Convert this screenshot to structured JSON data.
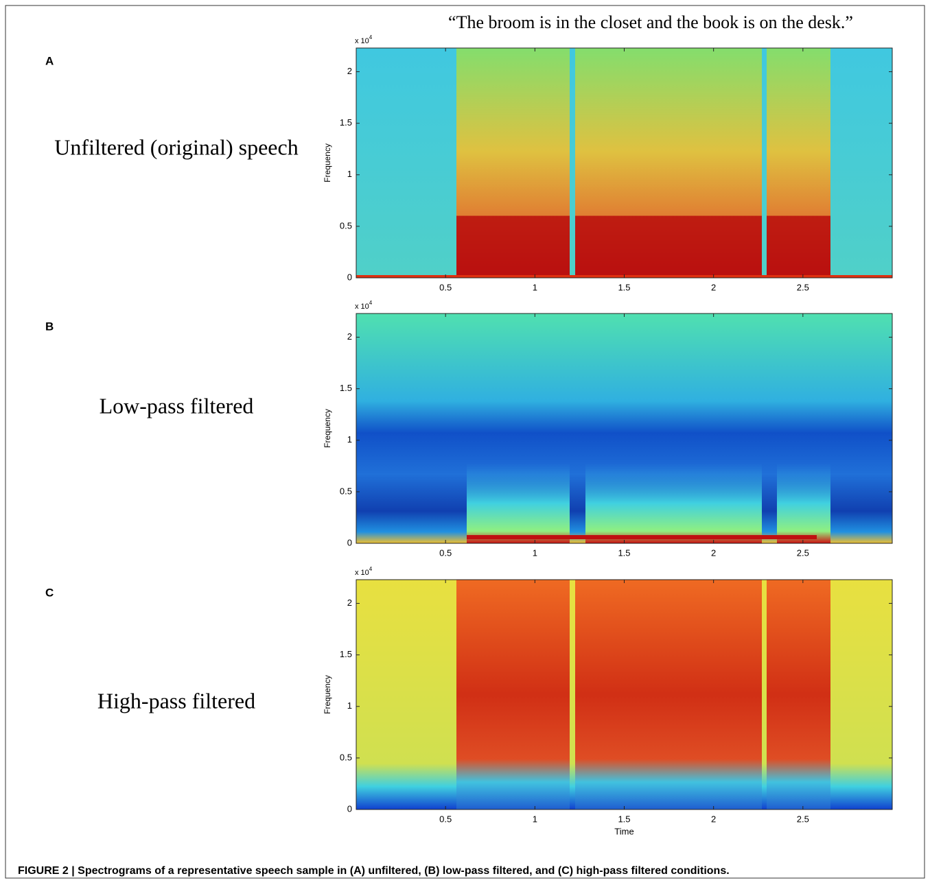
{
  "figure": {
    "sentence": "“The broom is in the closet and the book is on the desk.”",
    "caption": "FIGURE 2 | Spectrograms of a representative speech sample in (A) unfiltered, (B) low-pass filtered, and (C) high-pass filtered conditions."
  },
  "chart_data": [
    {
      "type": "spectrogram",
      "panel": "A",
      "label": "Unfiltered (original) speech",
      "y_label": "Frequency",
      "y_scale": "x 10",
      "y_scale_exponent": "4",
      "xlim": [
        0,
        3
      ],
      "ylim": [
        0,
        2.23
      ],
      "xticks": [
        0.5,
        1,
        1.5,
        2,
        2.5
      ],
      "yticks": [
        0,
        0.5,
        1,
        1.5,
        2
      ],
      "style": "unfiltered"
    },
    {
      "type": "spectrogram",
      "panel": "B",
      "label": "Low-pass filtered",
      "y_label": "Frequency",
      "y_scale": "x 10",
      "y_scale_exponent": "4",
      "xlim": [
        0,
        3
      ],
      "ylim": [
        0,
        2.23
      ],
      "xticks": [
        0.5,
        1,
        1.5,
        2,
        2.5
      ],
      "yticks": [
        0,
        0.5,
        1,
        1.5,
        2
      ],
      "style": "lowpass"
    },
    {
      "type": "spectrogram",
      "panel": "C",
      "label": "High-pass filtered",
      "y_label": "Frequency",
      "x_label": "Time",
      "y_scale": "x 10",
      "y_scale_exponent": "4",
      "xlim": [
        0,
        3
      ],
      "ylim": [
        0,
        2.23
      ],
      "xticks": [
        0.5,
        1,
        1.5,
        2,
        2.5
      ],
      "yticks": [
        0,
        0.5,
        1,
        1.5,
        2
      ],
      "style": "highpass"
    }
  ]
}
